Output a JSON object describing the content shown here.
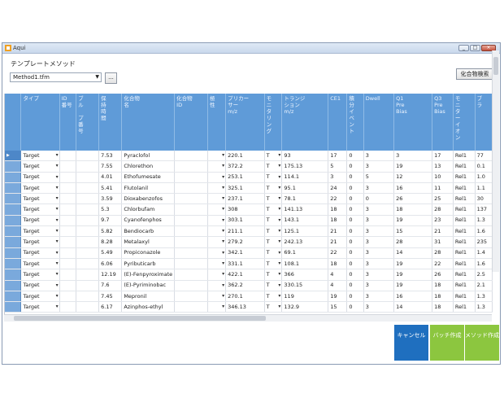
{
  "window": {
    "title": "Aqui"
  },
  "method": {
    "label": "テンプレートメソッド",
    "selected": "Method1.tfm",
    "browse_label": "..."
  },
  "compound_button_label": "化合物検索",
  "columns": [
    "タイプ",
    "ID\n番号",
    "ブ\nル\n\nプ\n番\n号",
    "保\n持\n時\n間",
    "化合物\n名",
    "化合物\nID",
    "極\n性",
    "プリカー\nサー\nm/z",
    "モ\nニ\nタ\nリ\nン\nグ",
    "トランジ\nション\nm/z",
    "CE1",
    "積\n分\nイ\nベ\nン\nト",
    "Dwell",
    "Q1\nPre\nBias",
    "Q3\nPre\nBias",
    "モ\nニ\nタ\nー\nイ\nオ\nン",
    "ブ\nラ"
  ],
  "rows": [
    [
      "Target",
      "",
      "",
      "7.53",
      "Pyraclofol",
      "",
      "",
      "220.1",
      "T",
      "93",
      "17",
      "0",
      "3",
      "3",
      "17",
      "Rel1",
      "77"
    ],
    [
      "Target",
      "",
      "",
      "7.55",
      "Chlorethon",
      "",
      "",
      "372.2",
      "T",
      "175.13",
      "5",
      "0",
      "3",
      "19",
      "13",
      "Rel1",
      "0.1"
    ],
    [
      "Target",
      "",
      "",
      "4.01",
      "Ethofumesate",
      "",
      "",
      "253.1",
      "T",
      "114.1",
      "3",
      "0",
      "5",
      "12",
      "10",
      "Rel1",
      "1.0"
    ],
    [
      "Target",
      "",
      "",
      "5.41",
      "Flutolanil",
      "",
      "",
      "325.1",
      "T",
      "95.1",
      "24",
      "0",
      "3",
      "16",
      "11",
      "Rel1",
      "1.1"
    ],
    [
      "Target",
      "",
      "",
      "3.59",
      "Dioxabenzofos",
      "",
      "",
      "237.1",
      "T",
      "78.1",
      "22",
      "0",
      "0",
      "26",
      "25",
      "Rel1",
      "30"
    ],
    [
      "Target",
      "",
      "",
      "5.3",
      "Chlorbufam",
      "",
      "",
      "308",
      "T",
      "141.13",
      "18",
      "0",
      "3",
      "18",
      "28",
      "Rel1",
      "137"
    ],
    [
      "Target",
      "",
      "",
      "9.7",
      "Cyanofenphos",
      "",
      "",
      "303.1",
      "T",
      "143.1",
      "18",
      "0",
      "3",
      "19",
      "23",
      "Rel1",
      "1.3"
    ],
    [
      "Target",
      "",
      "",
      "5.82",
      "Bendiocarb",
      "",
      "",
      "211.1",
      "T",
      "125.1",
      "21",
      "0",
      "3",
      "15",
      "21",
      "Rel1",
      "1.6"
    ],
    [
      "Target",
      "",
      "",
      "8.28",
      "Metalaxyl",
      "",
      "",
      "279.2",
      "T",
      "242.13",
      "21",
      "0",
      "3",
      "28",
      "31",
      "Rel1",
      "235"
    ],
    [
      "Target",
      "",
      "",
      "5.49",
      "Propiconazole",
      "",
      "",
      "342.1",
      "T",
      "69.1",
      "22",
      "0",
      "3",
      "14",
      "28",
      "Rel1",
      "1.4"
    ],
    [
      "Target",
      "",
      "",
      "6.06",
      "Pyributicarb",
      "",
      "",
      "331.1",
      "T",
      "108.1",
      "18",
      "0",
      "3",
      "19",
      "22",
      "Rel1",
      "1.6"
    ],
    [
      "Target",
      "",
      "",
      "12.19",
      "(E)-Fenpyroximate",
      "",
      "",
      "422.1",
      "T",
      "366",
      "4",
      "0",
      "3",
      "19",
      "26",
      "Rel1",
      "2.5"
    ],
    [
      "Target",
      "",
      "",
      "7.6",
      "(E)-Pyriminobac",
      "",
      "",
      "362.2",
      "T",
      "330.15",
      "4",
      "0",
      "3",
      "19",
      "18",
      "Rel1",
      "2.1"
    ],
    [
      "Target",
      "",
      "",
      "7.45",
      "Mepronil",
      "",
      "",
      "270.1",
      "T",
      "119",
      "19",
      "0",
      "3",
      "16",
      "18",
      "Rel1",
      "1.3"
    ],
    [
      "Target",
      "",
      "",
      "6.17",
      "Azinphos-ethyl",
      "",
      "",
      "346.13",
      "T",
      "132.9",
      "15",
      "0",
      "3",
      "14",
      "18",
      "Rel1",
      "1.3"
    ]
  ],
  "actions": {
    "cancel": "キャンセル",
    "batch": "バッチ作成",
    "method": "メソッド作成"
  },
  "colors": {
    "header_blue": "#5f9bd8",
    "action_blue": "#1f6fbf",
    "action_green": "#8cc63f"
  },
  "icons": {
    "app": "app-icon",
    "minimize": "minimize-icon",
    "maximize": "maximize-icon",
    "close": "close-icon"
  }
}
